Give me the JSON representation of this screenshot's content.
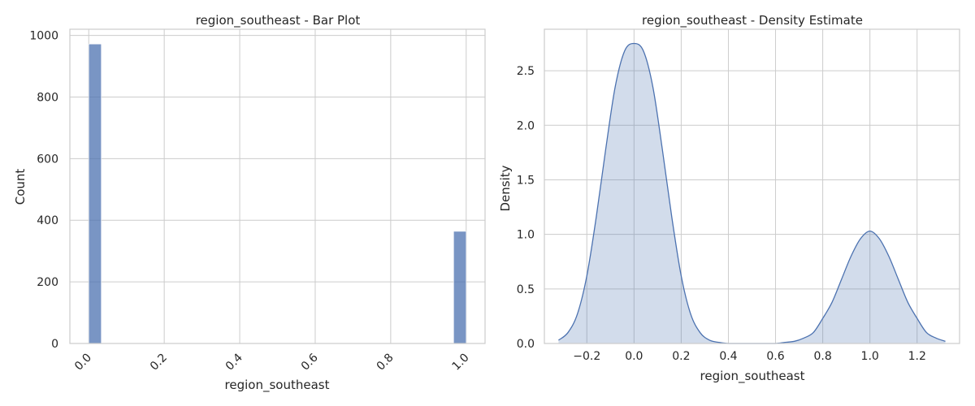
{
  "chart_data": [
    {
      "type": "bar",
      "title": "region_southeast - Bar Plot",
      "xlabel": "region_southeast",
      "ylabel": "Count",
      "xlim": [
        -0.05,
        1.05
      ],
      "ylim": [
        0,
        1020
      ],
      "x_ticks": [
        "0.0",
        "0.2",
        "0.4",
        "0.6",
        "0.8",
        "1.0"
      ],
      "x_tick_values": [
        0.0,
        0.2,
        0.4,
        0.6,
        0.8,
        1.0
      ],
      "x_tick_rotation": -45,
      "y_ticks": [
        "0",
        "200",
        "400",
        "600",
        "800",
        "1000"
      ],
      "y_tick_values": [
        0,
        200,
        400,
        600,
        800,
        1000
      ],
      "bins": [
        {
          "x0": 0.0,
          "x1": 0.0333,
          "value": 972
        },
        {
          "x0": 0.9667,
          "x1": 1.0,
          "value": 364
        }
      ],
      "bar_color": "#4c72b0",
      "grid": true
    },
    {
      "type": "area",
      "title": "region_southeast - Density Estimate",
      "xlabel": "region_southeast",
      "ylabel": "Density",
      "xlim": [
        -0.38,
        1.38
      ],
      "ylim": [
        0,
        2.88
      ],
      "x_ticks": [
        "−0.2",
        "0.0",
        "0.2",
        "0.4",
        "0.6",
        "0.8",
        "1.0",
        "1.2"
      ],
      "x_tick_values": [
        -0.2,
        0.0,
        0.2,
        0.4,
        0.6,
        0.8,
        1.0,
        1.2
      ],
      "y_ticks": [
        "0.0",
        "0.5",
        "1.0",
        "1.5",
        "2.0",
        "2.5"
      ],
      "y_tick_values": [
        0.0,
        0.5,
        1.0,
        1.5,
        2.0,
        2.5
      ],
      "x": [
        -0.32,
        -0.28,
        -0.24,
        -0.2,
        -0.16,
        -0.12,
        -0.08,
        -0.04,
        0.0,
        0.04,
        0.08,
        0.12,
        0.16,
        0.2,
        0.24,
        0.28,
        0.32,
        0.36,
        0.4,
        0.44,
        0.48,
        0.52,
        0.56,
        0.6,
        0.64,
        0.68,
        0.72,
        0.76,
        0.8,
        0.84,
        0.88,
        0.92,
        0.96,
        1.0,
        1.04,
        1.08,
        1.12,
        1.16,
        1.2,
        1.24,
        1.28,
        1.32
      ],
      "y": [
        0.03,
        0.1,
        0.27,
        0.62,
        1.16,
        1.78,
        2.35,
        2.68,
        2.75,
        2.68,
        2.35,
        1.78,
        1.16,
        0.62,
        0.27,
        0.1,
        0.03,
        0.01,
        0.0,
        0.0,
        0.0,
        0.0,
        0.0,
        0.0,
        0.01,
        0.02,
        0.05,
        0.1,
        0.23,
        0.38,
        0.59,
        0.8,
        0.96,
        1.03,
        0.96,
        0.8,
        0.59,
        0.38,
        0.23,
        0.1,
        0.05,
        0.02
      ],
      "line_color": "#4c72b0",
      "fill_color": "#4c72b0",
      "fill_opacity": 0.25,
      "grid": true
    }
  ]
}
